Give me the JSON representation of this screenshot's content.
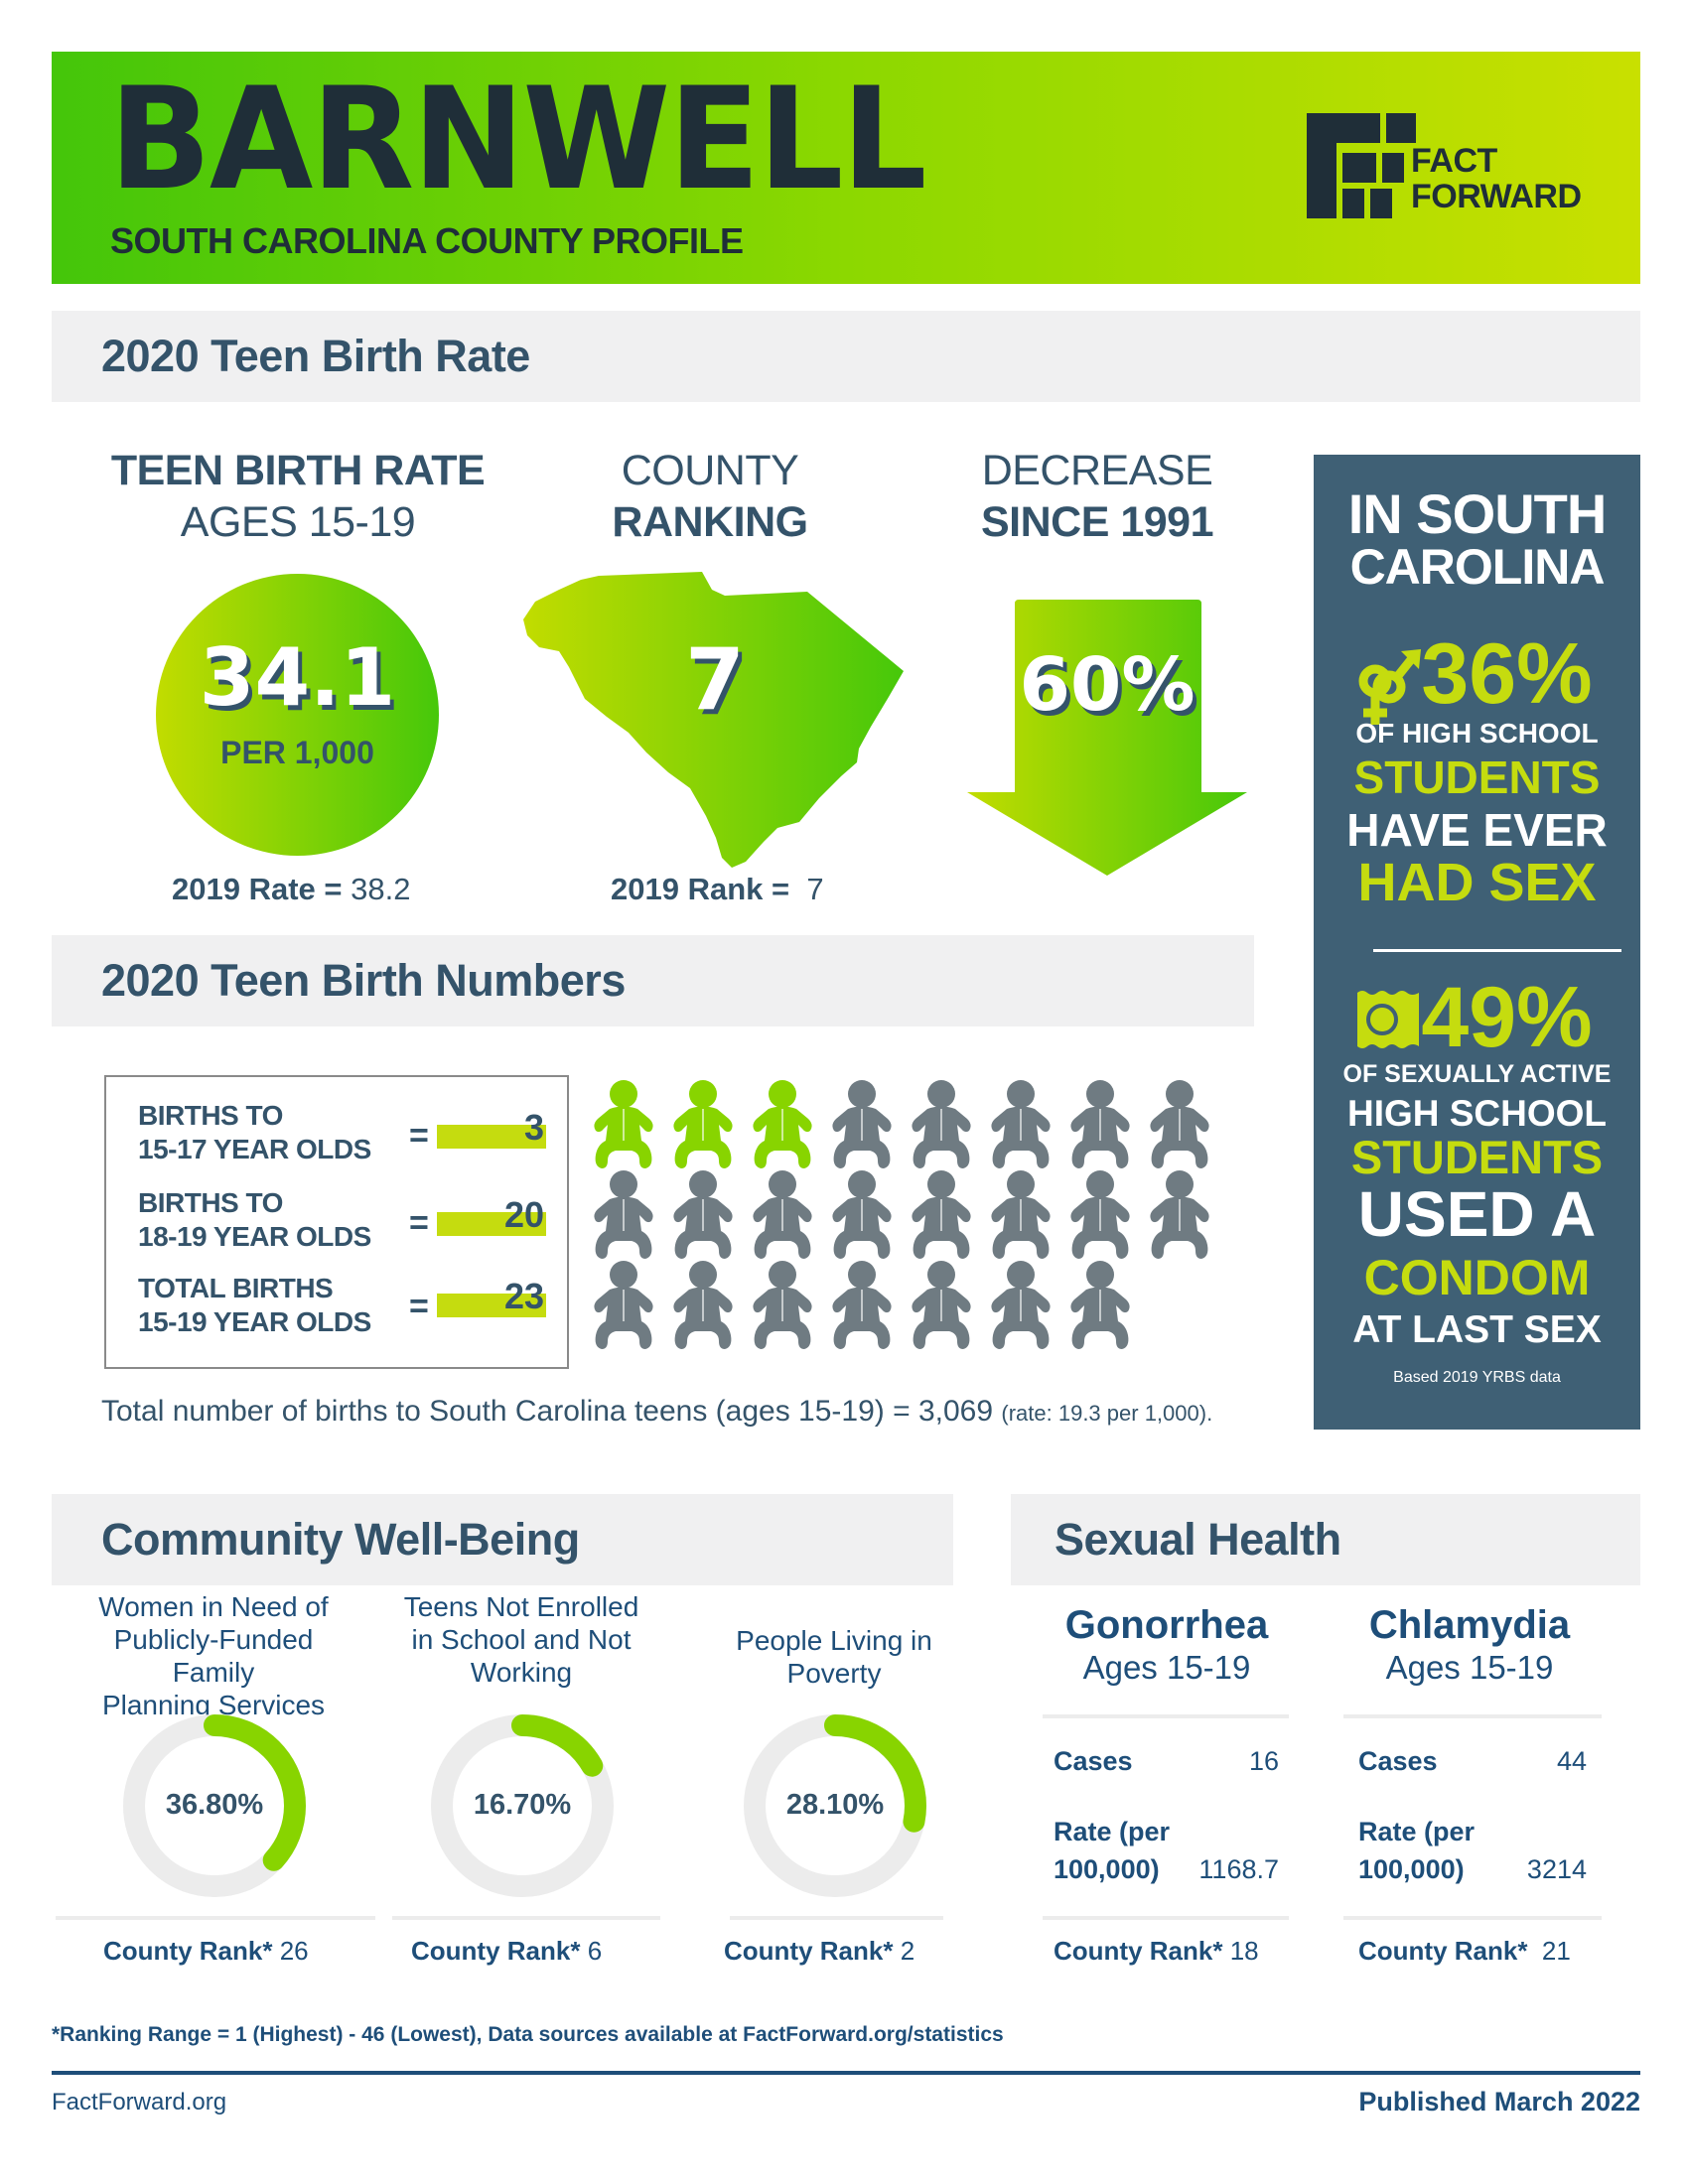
{
  "header": {
    "county": "BARNWELL",
    "subtitle": "SOUTH CAROLINA COUNTY PROFILE",
    "logo_line1": "FACT",
    "logo_line2": "FORWARD"
  },
  "colors": {
    "green_start": "#44c60a",
    "green_end": "#c9e000",
    "lime": "#c5dc0f",
    "navy": "#34536a",
    "panel": "#3f6075",
    "section_bg": "#f0f0f1",
    "donut_track": "#ececec",
    "donut_fill": "#88d400",
    "baby_highlight": "#88d400",
    "baby_default": "#6f7b82"
  },
  "teen_birth_rate": {
    "section_title": "2020 Teen Birth Rate",
    "rate": {
      "heading_line1": "TEEN BIRTH RATE",
      "heading_line2": "AGES 15-19",
      "value": "34.1",
      "unit": "PER 1,000",
      "prev_label": "2019 Rate =",
      "prev_value": "38.2"
    },
    "ranking": {
      "heading_line1": "COUNTY",
      "heading_line2": "RANKING",
      "value": "7",
      "prev_label": "2019 Rank =",
      "prev_value": "7"
    },
    "decrease": {
      "heading_line1": "DECREASE",
      "heading_line2": "SINCE 1991",
      "value": "60%"
    }
  },
  "sc_panel": {
    "title_line1": "IN SOUTH",
    "title_line2": "CAROLINA",
    "stat1": {
      "icon": "gender-symbols-icon",
      "value": "36%",
      "line1": "OF HIGH SCHOOL",
      "line2": "STUDENTS",
      "line3": "HAVE EVER",
      "line4": "HAD SEX"
    },
    "stat2": {
      "icon": "condom-wrapper-icon",
      "value": "49%",
      "line1": "OF SEXUALLY ACTIVE",
      "line2": "HIGH SCHOOL",
      "line3": "STUDENTS",
      "line4": "USED A",
      "line5": "CONDOM",
      "line6": "AT LAST SEX"
    },
    "source": "Based 2019 YRBS data"
  },
  "teen_birth_numbers": {
    "section_title": "2020 Teen Birth Numbers",
    "rows": [
      {
        "line1": "BIRTHS TO",
        "line2": "15-17 YEAR OLDS",
        "eq": "=",
        "value": "3"
      },
      {
        "line1": "BIRTHS TO",
        "line2": "18-19 YEAR OLDS",
        "eq": "=",
        "value": "20"
      },
      {
        "line1": "TOTAL BIRTHS",
        "line2": "15-19 YEAR OLDS",
        "eq": "=",
        "value": "23"
      }
    ],
    "baby_icons": {
      "total": 23,
      "highlighted": 3,
      "per_row": 8
    },
    "sc_total_text": "Total number of births to South Carolina teens (ages 15-19) = 3,069",
    "sc_total_rate": "(rate: 19.3 per 1,000)."
  },
  "community": {
    "section_title": "Community Well-Being",
    "items": [
      {
        "title_lines": [
          "Women in Need of",
          "Publicly-Funded Family",
          "Planning Services"
        ],
        "value": "36.80%",
        "percent": 36.8,
        "rank_label": "County Rank*",
        "rank": "26"
      },
      {
        "title_lines": [
          "Teens Not Enrolled",
          "in School and Not",
          "Working"
        ],
        "value": "16.70%",
        "percent": 16.7,
        "rank_label": "County Rank*",
        "rank": "6"
      },
      {
        "title_lines": [
          "People Living in",
          "Poverty"
        ],
        "value": "28.10%",
        "percent": 28.1,
        "rank_label": "County Rank*",
        "rank": "2"
      }
    ]
  },
  "sexual_health": {
    "section_title": "Sexual Health",
    "diseases": [
      {
        "name": "Gonorrhea",
        "ages": "Ages 15-19",
        "cases_label": "Cases",
        "cases": "16",
        "rate_label1": "Rate (per",
        "rate_label2": "100,000)",
        "rate": "1168.7",
        "rank_label": "County Rank*",
        "rank": "18"
      },
      {
        "name": "Chlamydia",
        "ages": "Ages 15-19",
        "cases_label": "Cases",
        "cases": "44",
        "rate_label1": "Rate (per",
        "rate_label2": "100,000)",
        "rate": "3214",
        "rank_label": "County Rank*",
        "rank": "21"
      }
    ]
  },
  "footer": {
    "footnote": "*Ranking Range = 1 (Highest) - 46 (Lowest), Data sources available at FactForward.org/statistics",
    "site": "FactForward.org",
    "published": "Published March 2022"
  }
}
